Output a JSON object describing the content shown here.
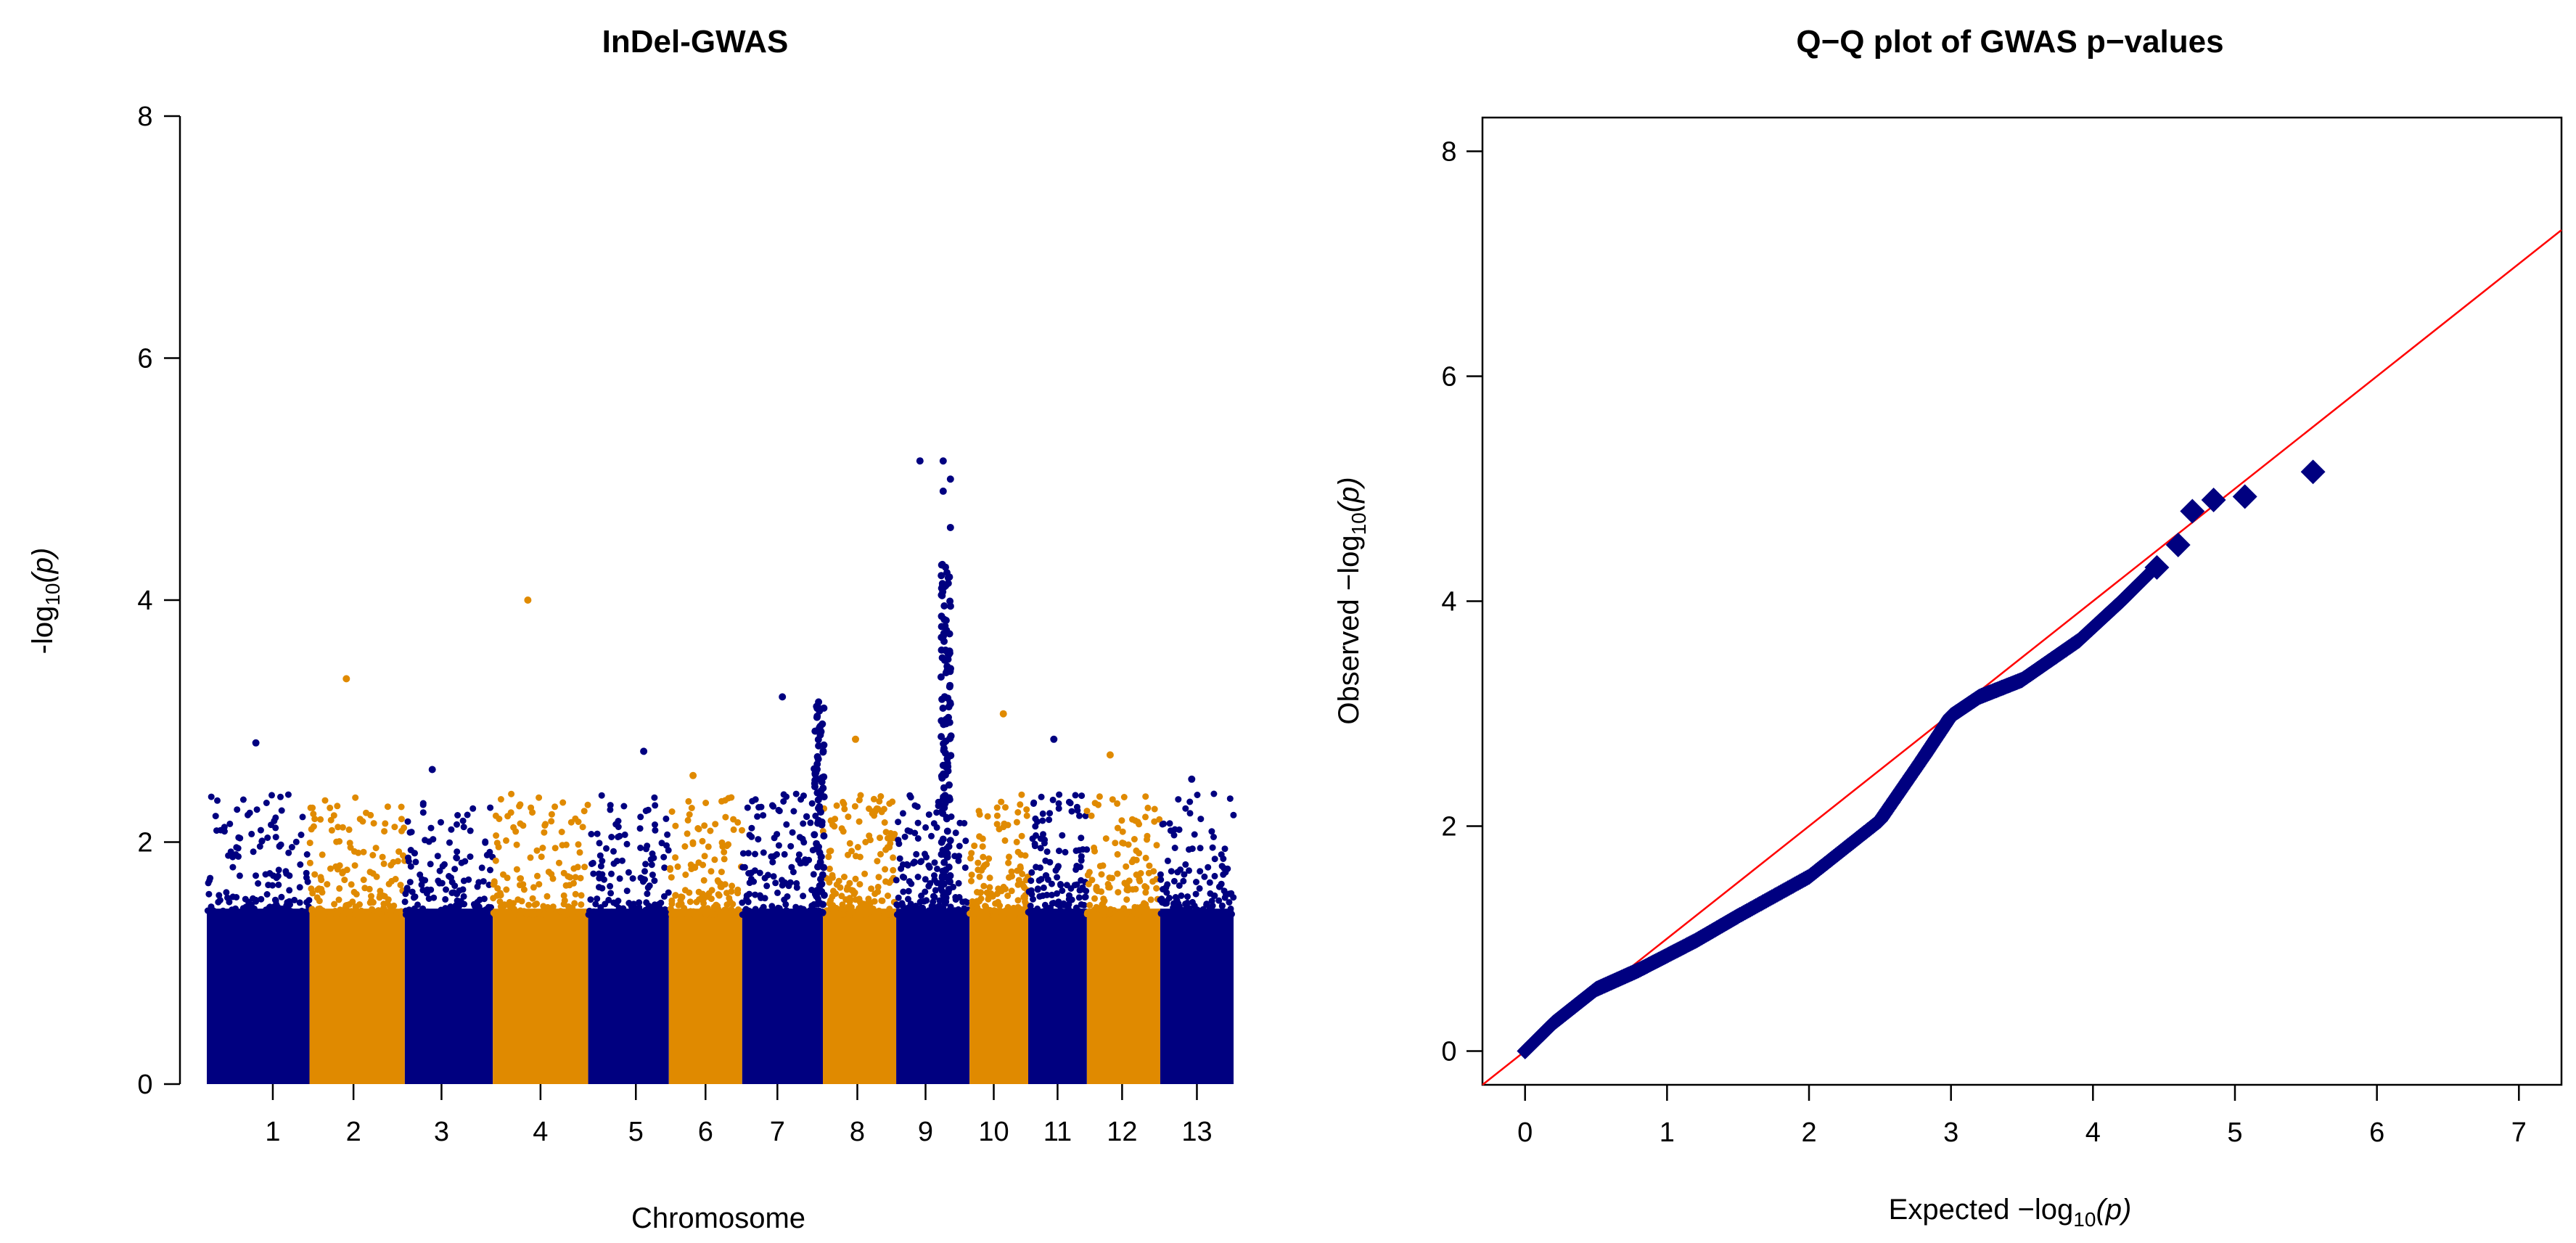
{
  "chart_data": [
    {
      "type": "scatter",
      "subtype": "manhattan",
      "title": "InDel-GWAS",
      "xlabel": "Chromosome",
      "ylabel_prefix": "-log",
      "ylabel_sub": "10",
      "ylabel_suffix": "(p)",
      "ylim": [
        0,
        8
      ],
      "yticks": [
        0,
        2,
        4,
        6,
        8
      ],
      "colors": [
        "#000080",
        "#E08A00"
      ],
      "chromosomes": [
        {
          "label": "1",
          "span": [
            0.0,
            0.14
          ],
          "tick": 0.09,
          "max": 2.82
        },
        {
          "label": "2",
          "span": [
            0.14,
            0.27
          ],
          "tick": 0.2,
          "max": 3.35
        },
        {
          "label": "3",
          "span": [
            0.27,
            0.39
          ],
          "tick": 0.32,
          "max": 2.6
        },
        {
          "label": "4",
          "span": [
            0.39,
            0.52
          ],
          "tick": 0.455,
          "max": 4.0
        },
        {
          "label": "5",
          "span": [
            0.52,
            0.63
          ],
          "tick": 0.585,
          "max": 2.75
        },
        {
          "label": "6",
          "span": [
            0.63,
            0.73
          ],
          "tick": 0.68,
          "max": 2.55
        },
        {
          "label": "7",
          "span": [
            0.73,
            0.84
          ],
          "tick": 0.778,
          "max": 3.2
        },
        {
          "label": "8",
          "span": [
            0.84,
            0.94
          ],
          "tick": 0.887,
          "max": 2.85
        },
        {
          "label": "9",
          "span": [
            0.94,
            1.04
          ],
          "tick": 0.98,
          "max": 5.15
        },
        {
          "label": "10",
          "span": [
            1.04,
            1.12
          ],
          "tick": 1.073,
          "max": 3.06
        },
        {
          "label": "11",
          "span": [
            1.12,
            1.2
          ],
          "tick": 1.16,
          "max": 2.85
        },
        {
          "label": "12",
          "span": [
            1.2,
            1.3
          ],
          "tick": 1.248,
          "max": 2.72
        },
        {
          "label": "13",
          "span": [
            1.3,
            1.4
          ],
          "tick": 1.35,
          "max": 2.52
        }
      ]
    },
    {
      "type": "scatter",
      "subtype": "qq",
      "title": "Q−Q plot of GWAS p−values",
      "xlabel_prefix": "Expected  −log",
      "xlabel_sub": "10",
      "xlabel_suffix": "(p)",
      "ylabel_prefix": "Observed  −log",
      "ylabel_sub": "10",
      "ylabel_suffix": "(p)",
      "xlim": [
        -0.3,
        7.3
      ],
      "ylim": [
        -0.3,
        8.3
      ],
      "xticks": [
        0,
        1,
        2,
        3,
        4,
        5,
        6,
        7
      ],
      "yticks": [
        0,
        2,
        4,
        6,
        8
      ],
      "point_color": "#000080",
      "line_color": "#FF0000",
      "reference_line": {
        "slope": 1,
        "intercept": 0
      },
      "curve": [
        [
          0,
          0
        ],
        [
          0.2,
          0.25
        ],
        [
          0.5,
          0.55
        ],
        [
          0.8,
          0.72
        ],
        [
          1.2,
          0.98
        ],
        [
          1.5,
          1.2
        ],
        [
          2.0,
          1.55
        ],
        [
          2.5,
          2.05
        ],
        [
          2.8,
          2.6
        ],
        [
          3.0,
          2.98
        ],
        [
          3.2,
          3.15
        ],
        [
          3.5,
          3.3
        ],
        [
          3.9,
          3.65
        ],
        [
          4.2,
          4.0
        ],
        [
          4.4,
          4.25
        ]
      ],
      "top_points": [
        [
          4.45,
          4.3
        ],
        [
          4.6,
          4.5
        ],
        [
          4.7,
          4.8
        ],
        [
          4.85,
          4.9
        ],
        [
          5.07,
          4.93
        ],
        [
          5.55,
          5.15
        ]
      ]
    }
  ]
}
